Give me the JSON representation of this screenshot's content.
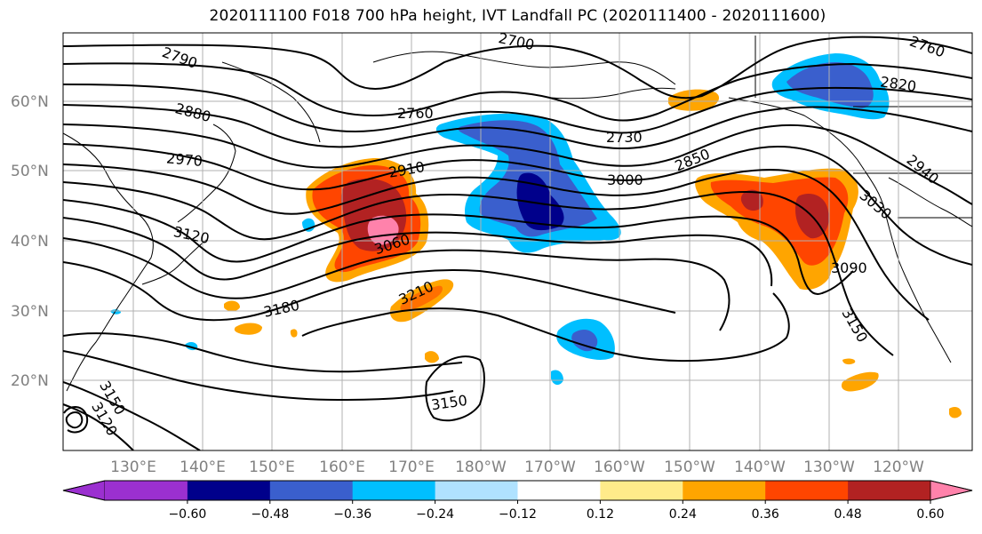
{
  "title": "2020111100 F018 700 hPa height, IVT Landfall PC (2020111400 - 2020111600)",
  "map": {
    "lon_ticks": [
      "130°E",
      "140°E",
      "150°E",
      "160°E",
      "170°E",
      "180°W",
      "170°W",
      "160°W",
      "150°W",
      "140°W",
      "130°W",
      "120°W"
    ],
    "lat_ticks": [
      "20°N",
      "30°N",
      "40°N",
      "50°N",
      "60°N"
    ],
    "contour_labels": [
      "2700",
      "2760",
      "2790",
      "2820",
      "2760",
      "2730",
      "2850",
      "2880",
      "2910",
      "2940",
      "2970",
      "3000",
      "3030",
      "3060",
      "3090",
      "3120",
      "3150",
      "3150",
      "3150",
      "3120",
      "3180",
      "3210"
    ],
    "grid": true
  },
  "colorbar": {
    "ticks": [
      "−0.60",
      "−0.48",
      "−0.36",
      "−0.24",
      "−0.12",
      "0.12",
      "0.24",
      "0.36",
      "0.48",
      "0.60"
    ],
    "colors": [
      "#9b30d0",
      "#00008b",
      "#3a5fcd",
      "#00bfff",
      "#b0e2ff",
      "#ffffff",
      "#ffeb8a",
      "#ffa500",
      "#ff4500",
      "#b22222",
      "#ff82ab"
    ],
    "extend": "both"
  }
}
